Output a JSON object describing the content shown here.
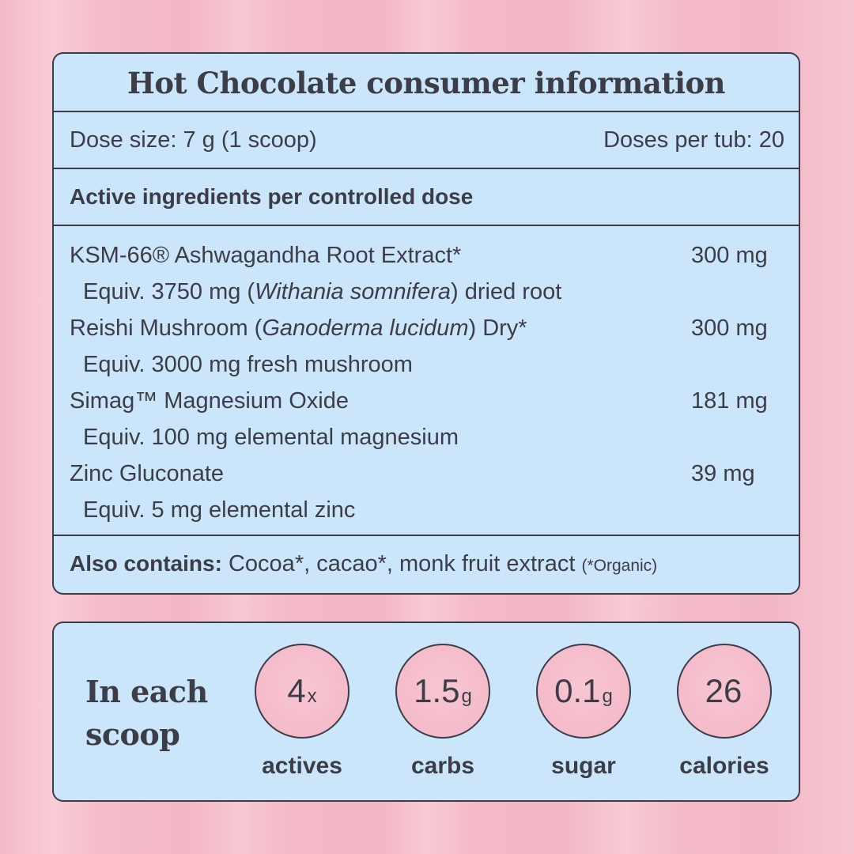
{
  "info": {
    "title": "Hot Chocolate consumer information",
    "dose_size": "Dose size: 7 g (1 scoop)",
    "doses_per_tub": "Doses per tub: 20",
    "active_heading": "Active ingredients per controlled dose",
    "ingredients": [
      {
        "name": "KSM-66® Ashwagandha Root Extract*",
        "amount": "300 mg",
        "equiv_pre": "Equiv. 3750 mg (",
        "equiv_italic": "Withania somnifera",
        "equiv_post": ") dried root"
      },
      {
        "name_pre": "Reishi Mushroom (",
        "name_italic": "Ganoderma lucidum",
        "name_post": ") Dry*",
        "amount": "300 mg",
        "equiv": "Equiv. 3000 mg fresh mushroom"
      },
      {
        "name": "Simag™ Magnesium Oxide",
        "amount": "181 mg",
        "equiv": "Equiv. 100 mg elemental magnesium"
      },
      {
        "name": "Zinc Gluconate",
        "amount": "39 mg",
        "equiv": "Equiv. 5 mg elemental zinc"
      }
    ],
    "also_label": "Also contains:",
    "also_text": "Cocoa*, cacao*, monk fruit extract",
    "also_note": "(*Organic)"
  },
  "scoop": {
    "label_line1": "In each",
    "label_line2": "scoop",
    "stats": [
      {
        "value": "4",
        "unit": "x",
        "label": "actives"
      },
      {
        "value": "1.5",
        "unit": "g",
        "label": "carbs"
      },
      {
        "value": "0.1",
        "unit": "g",
        "label": "sugar"
      },
      {
        "value": "26",
        "unit": "",
        "label": "calories"
      }
    ]
  },
  "colors": {
    "panel": "#cbe6fb",
    "border": "#3d3d47",
    "background": "#f3b6c6",
    "circle": "#f4b6c7"
  }
}
